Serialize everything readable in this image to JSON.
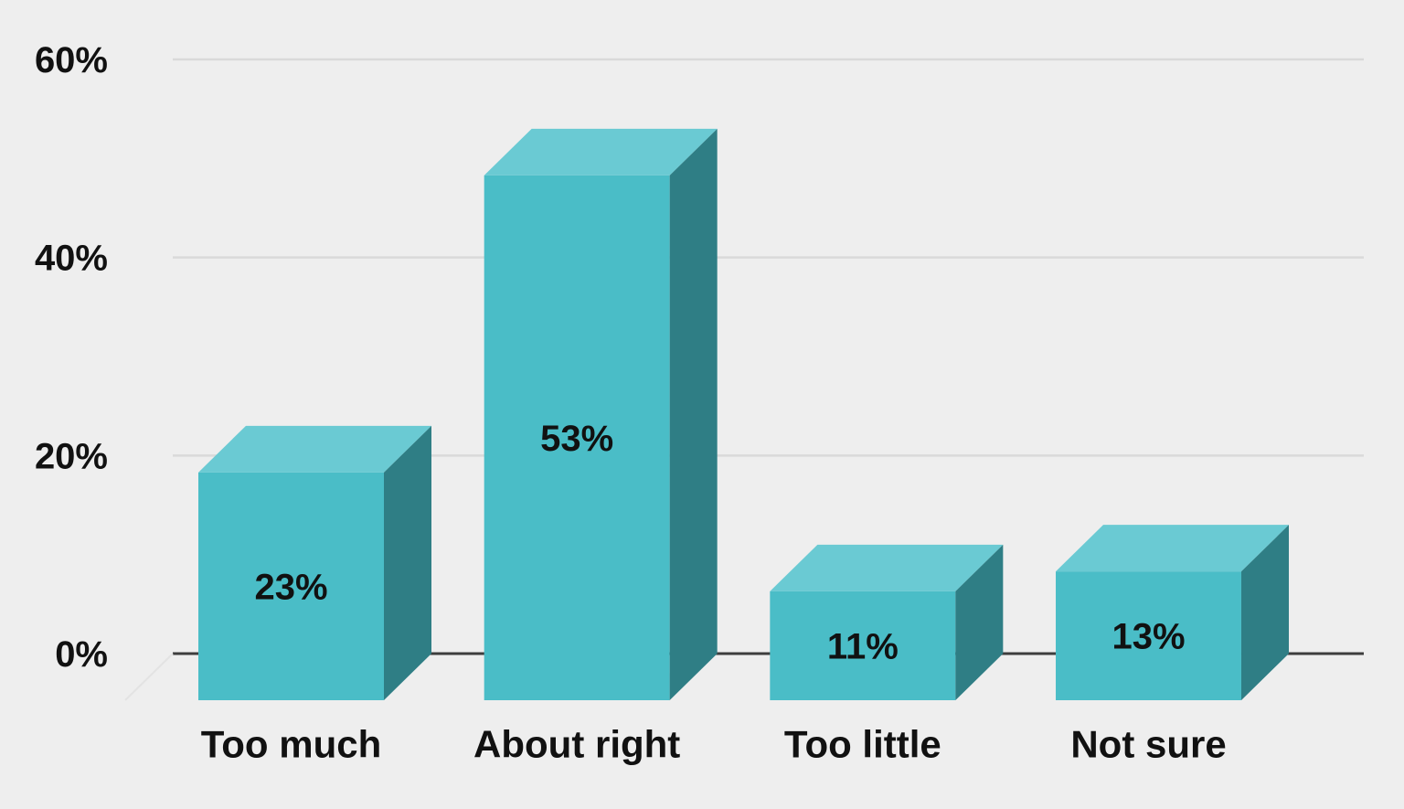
{
  "chart_data": {
    "type": "bar",
    "style": "3d-bar",
    "title": "",
    "categories": [
      "Too much",
      "About right",
      "Too little",
      "Not sure"
    ],
    "values": [
      23,
      53,
      11,
      13
    ],
    "data_labels": [
      "23%",
      "53%",
      "11%",
      "13%"
    ],
    "y_ticks": [
      {
        "value": 0,
        "label": "0%"
      },
      {
        "value": 20,
        "label": "20%"
      },
      {
        "value": 40,
        "label": "40%"
      },
      {
        "value": 60,
        "label": "60%"
      }
    ],
    "ylim": [
      0,
      60
    ],
    "xlabel": "",
    "ylabel": "",
    "grid": true,
    "legend": false,
    "colors": {
      "bar_front": "#4ABDC7",
      "bar_top": "#6ACAD3",
      "bar_side": "#2F7E85",
      "background": "#EEEEEE",
      "gridline": "#D9D9D9",
      "floor_edge": "#E3E3E3",
      "axis": "#3D3D3D",
      "text": "#111111"
    }
  }
}
